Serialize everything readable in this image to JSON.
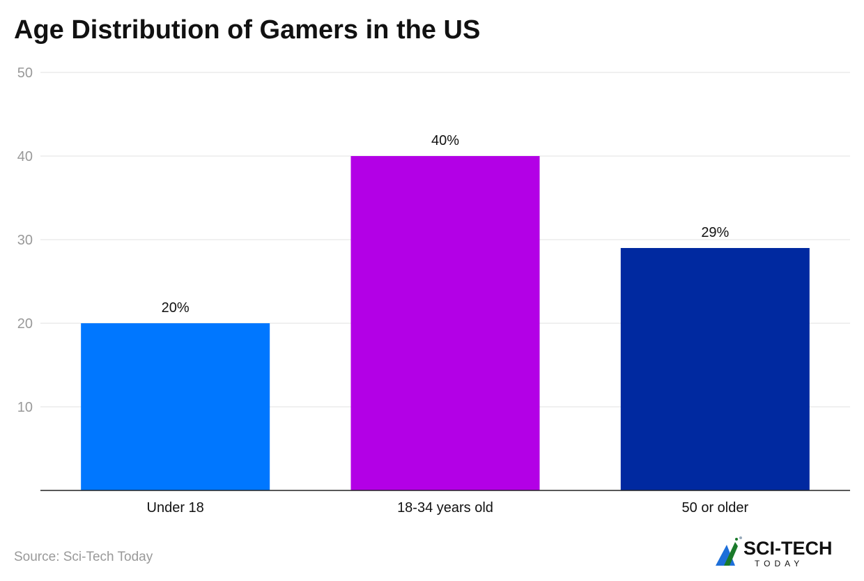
{
  "chart_data": {
    "type": "bar",
    "title": "Age Distribution of Gamers in the US",
    "categories": [
      "Under 18",
      "18-34 years old",
      "50 or older"
    ],
    "values": [
      20,
      40,
      29
    ],
    "data_labels": [
      "20%",
      "40%",
      "29%"
    ],
    "colors": [
      "#0077ff",
      "#b300e6",
      "#0029a0"
    ],
    "yticks": [
      10,
      20,
      30,
      40,
      50
    ],
    "ylim": [
      0,
      50
    ],
    "xlabel": "",
    "ylabel": "",
    "grid": true,
    "legend": "none"
  },
  "source": "Source: Sci-Tech Today",
  "logo": {
    "text_main": "SCI-TECH",
    "text_sub": "TODAY"
  }
}
